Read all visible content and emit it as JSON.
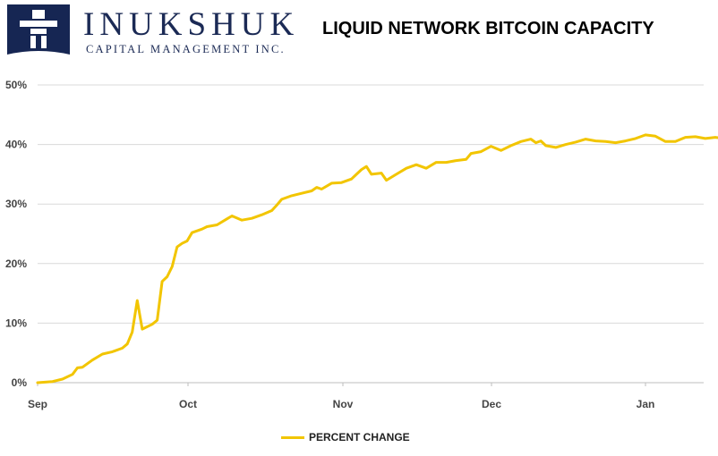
{
  "logo": {
    "name": "INUKSHUK",
    "subtitle": "CAPITAL MANAGEMENT INC.",
    "colors": {
      "navy": "#162653",
      "white": "#ffffff"
    },
    "icon": "inukshuk-figure-icon"
  },
  "chart_data": {
    "type": "line",
    "title": "LIQUID NETWORK BITCOIN CAPACITY",
    "xlabel": "",
    "ylabel": "",
    "x_ticks": [
      "Sep",
      "Oct",
      "Nov",
      "Dec",
      "Jan"
    ],
    "y_ticks": [
      "0%",
      "10%",
      "20%",
      "30%",
      "40%",
      "50%"
    ],
    "ylim": [
      0,
      50
    ],
    "y_unit": "%",
    "grid": "horizontal",
    "legend_position": "bottom-center",
    "series": [
      {
        "name": "PERCENT CHANGE",
        "color": "#f2c500",
        "points": [
          [
            "2018-09-01",
            0.0
          ],
          [
            "2018-09-04",
            0.2
          ],
          [
            "2018-09-06",
            0.6
          ],
          [
            "2018-09-08",
            1.4
          ],
          [
            "2018-09-09",
            2.5
          ],
          [
            "2018-09-10",
            2.6
          ],
          [
            "2018-09-12",
            3.8
          ],
          [
            "2018-09-14",
            4.8
          ],
          [
            "2018-09-16",
            5.2
          ],
          [
            "2018-09-18",
            5.8
          ],
          [
            "2018-09-19",
            6.5
          ],
          [
            "2018-09-20",
            8.5
          ],
          [
            "2018-09-21",
            13.8
          ],
          [
            "2018-09-22",
            9.0
          ],
          [
            "2018-09-24",
            9.8
          ],
          [
            "2018-09-25",
            10.5
          ],
          [
            "2018-09-26",
            17.0
          ],
          [
            "2018-09-27",
            17.8
          ],
          [
            "2018-09-28",
            19.5
          ],
          [
            "2018-09-29",
            22.8
          ],
          [
            "2018-09-30",
            23.4
          ],
          [
            "2018-10-01",
            23.8
          ],
          [
            "2018-10-02",
            25.2
          ],
          [
            "2018-10-04",
            25.8
          ],
          [
            "2018-10-05",
            26.2
          ],
          [
            "2018-10-07",
            26.5
          ],
          [
            "2018-10-09",
            27.5
          ],
          [
            "2018-10-10",
            28.0
          ],
          [
            "2018-10-12",
            27.3
          ],
          [
            "2018-10-14",
            27.6
          ],
          [
            "2018-10-16",
            28.2
          ],
          [
            "2018-10-18",
            28.9
          ],
          [
            "2018-10-19",
            29.8
          ],
          [
            "2018-10-20",
            30.8
          ],
          [
            "2018-10-22",
            31.4
          ],
          [
            "2018-10-24",
            31.8
          ],
          [
            "2018-10-26",
            32.2
          ],
          [
            "2018-10-27",
            32.8
          ],
          [
            "2018-10-28",
            32.5
          ],
          [
            "2018-10-30",
            33.5
          ],
          [
            "2018-11-01",
            33.6
          ],
          [
            "2018-11-03",
            34.2
          ],
          [
            "2018-11-04",
            35.0
          ],
          [
            "2018-11-05",
            35.8
          ],
          [
            "2018-11-06",
            36.3
          ],
          [
            "2018-11-07",
            35.0
          ],
          [
            "2018-11-09",
            35.2
          ],
          [
            "2018-11-10",
            34.0
          ],
          [
            "2018-11-12",
            35.0
          ],
          [
            "2018-11-14",
            36.0
          ],
          [
            "2018-11-16",
            36.6
          ],
          [
            "2018-11-18",
            36.0
          ],
          [
            "2018-11-20",
            37.0
          ],
          [
            "2018-11-22",
            37.0
          ],
          [
            "2018-11-24",
            37.3
          ],
          [
            "2018-11-26",
            37.5
          ],
          [
            "2018-11-27",
            38.5
          ],
          [
            "2018-11-29",
            38.8
          ],
          [
            "2018-12-01",
            39.7
          ],
          [
            "2018-12-03",
            39.0
          ],
          [
            "2018-12-05",
            39.8
          ],
          [
            "2018-12-07",
            40.5
          ],
          [
            "2018-12-09",
            40.9
          ],
          [
            "2018-12-10",
            40.3
          ],
          [
            "2018-12-11",
            40.6
          ],
          [
            "2018-12-12",
            39.8
          ],
          [
            "2018-12-14",
            39.5
          ],
          [
            "2018-12-16",
            40.0
          ],
          [
            "2018-12-18",
            40.4
          ],
          [
            "2018-12-20",
            40.9
          ],
          [
            "2018-12-22",
            40.6
          ],
          [
            "2018-12-24",
            40.5
          ],
          [
            "2018-12-26",
            40.3
          ],
          [
            "2018-12-28",
            40.6
          ],
          [
            "2018-12-30",
            41.0
          ],
          [
            "2019-01-01",
            41.6
          ],
          [
            "2019-01-03",
            41.4
          ],
          [
            "2019-01-05",
            40.5
          ],
          [
            "2019-01-07",
            40.5
          ],
          [
            "2019-01-09",
            41.2
          ],
          [
            "2019-01-11",
            41.3
          ],
          [
            "2019-01-13",
            41.0
          ],
          [
            "2019-01-15",
            41.2
          ],
          [
            "2019-01-17",
            41.0
          ],
          [
            "2019-01-19",
            41.8
          ],
          [
            "2019-01-21",
            42.2
          ]
        ]
      }
    ]
  }
}
